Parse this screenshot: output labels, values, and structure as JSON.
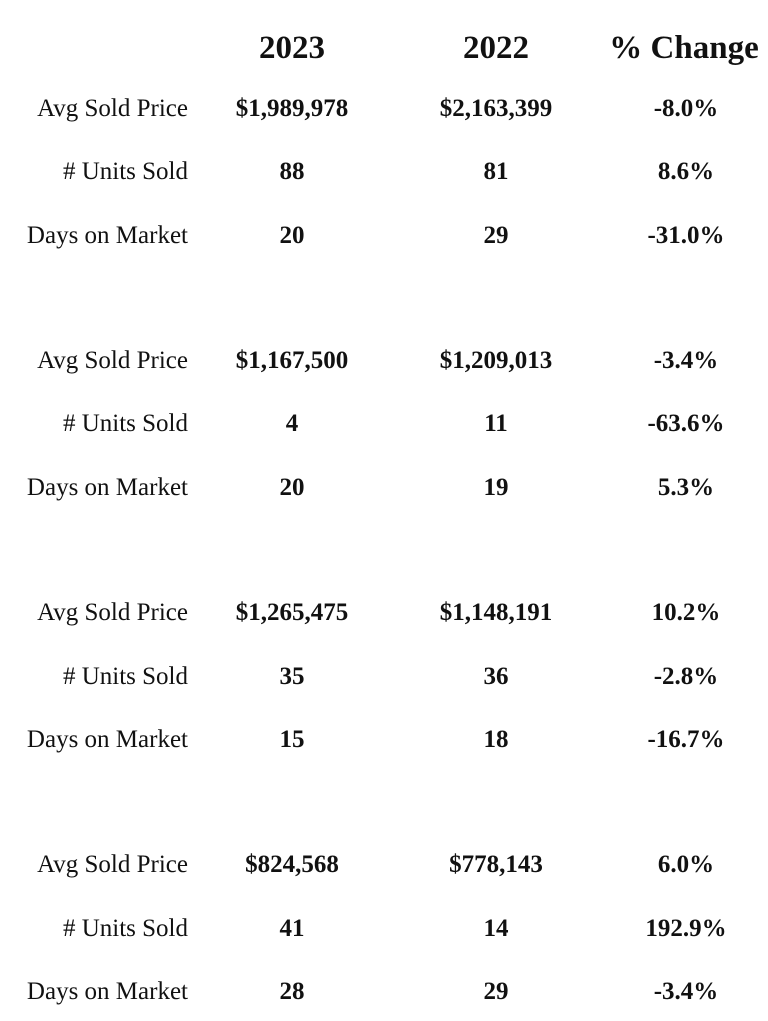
{
  "header": {
    "col_2023": "2023",
    "col_2022": "2022",
    "col_change": "% Change"
  },
  "rows": [
    {
      "label": "Avg Sold Price",
      "v2023": "$1,989,978",
      "v2022": "$2,163,399",
      "change": "-8.0%"
    },
    {
      "label": "# Units Sold",
      "v2023": "88",
      "v2022": "81",
      "change": "8.6%"
    },
    {
      "label": "Days on Market",
      "v2023": "20",
      "v2022": "29",
      "change": "-31.0%"
    },
    {
      "label": "Avg Sold Price",
      "v2023": "$1,167,500",
      "v2022": "$1,209,013",
      "change": "-3.4%"
    },
    {
      "label": "# Units Sold",
      "v2023": "4",
      "v2022": "11",
      "change": "-63.6%"
    },
    {
      "label": "Days on Market",
      "v2023": "20",
      "v2022": "19",
      "change": "5.3%"
    },
    {
      "label": "Avg Sold Price",
      "v2023": "$1,265,475",
      "v2022": "$1,148,191",
      "change": "10.2%"
    },
    {
      "label": "# Units Sold",
      "v2023": "35",
      "v2022": "36",
      "change": "-2.8%"
    },
    {
      "label": "Days on Market",
      "v2023": "15",
      "v2022": "18",
      "change": "-16.7%"
    },
    {
      "label": "Avg Sold Price",
      "v2023": "$824,568",
      "v2022": "$778,143",
      "change": "6.0%"
    },
    {
      "label": "# Units Sold",
      "v2023": "41",
      "v2022": "14",
      "change": "192.9%"
    },
    {
      "label": "Days on Market",
      "v2023": "28",
      "v2022": "29",
      "change": "-3.4%"
    }
  ]
}
